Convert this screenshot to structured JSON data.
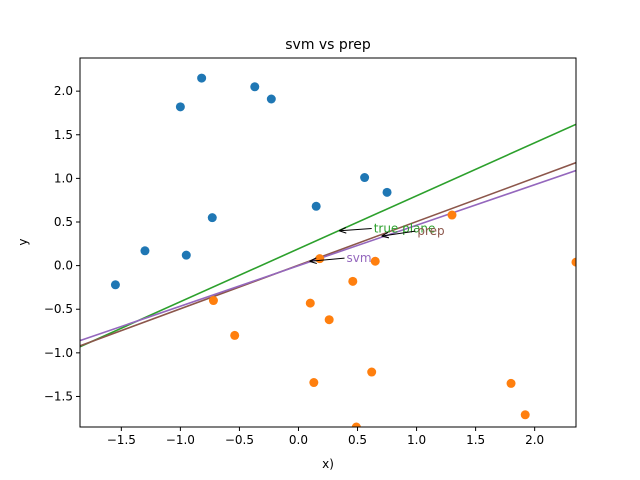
{
  "chart_data": {
    "type": "scatter",
    "title": "svm vs prep",
    "xlabel": "x)",
    "ylabel": "y",
    "xlim": [
      -1.85,
      2.35
    ],
    "ylim": [
      -1.85,
      2.38
    ],
    "grid": false,
    "xticks": [
      -1.5,
      -1.0,
      -0.5,
      0.0,
      0.5,
      1.0,
      1.5,
      2.0
    ],
    "yticks": [
      -1.5,
      -1.0,
      -0.5,
      0.0,
      0.5,
      1.0,
      1.5,
      2.0
    ],
    "series": [
      {
        "color": "#1f77b4",
        "points": [
          [
            -1.55,
            -0.22
          ],
          [
            -1.3,
            0.17
          ],
          [
            -1.0,
            1.82
          ],
          [
            -0.95,
            0.12
          ],
          [
            -0.82,
            2.15
          ],
          [
            -0.73,
            0.55
          ],
          [
            -0.37,
            2.05
          ],
          [
            -0.23,
            1.91
          ],
          [
            0.15,
            0.68
          ],
          [
            0.56,
            1.01
          ],
          [
            0.75,
            0.84
          ]
        ]
      },
      {
        "color": "#ff7f0e",
        "points": [
          [
            -0.72,
            -0.4
          ],
          [
            -0.54,
            -0.8
          ],
          [
            0.1,
            -0.43
          ],
          [
            0.13,
            -1.34
          ],
          [
            0.18,
            0.08
          ],
          [
            0.26,
            -0.62
          ],
          [
            0.46,
            -0.18
          ],
          [
            0.49,
            -1.85
          ],
          [
            0.62,
            -1.22
          ],
          [
            0.65,
            0.05
          ],
          [
            1.3,
            0.58
          ],
          [
            1.8,
            -1.35
          ],
          [
            1.92,
            -1.71
          ],
          [
            2.35,
            0.04
          ]
        ]
      }
    ],
    "lines": [
      {
        "color": "#2ca02c",
        "points": [
          [
            -1.85,
            -0.93
          ],
          [
            2.35,
            1.62
          ]
        ]
      },
      {
        "color": "#8c564b",
        "points": [
          [
            -1.85,
            -0.92
          ],
          [
            2.35,
            1.18
          ]
        ]
      },
      {
        "color": "#9467bd",
        "points": [
          [
            -1.85,
            -0.86
          ],
          [
            2.35,
            1.09
          ]
        ]
      }
    ],
    "annotations": [
      {
        "text": "true plane",
        "color": "#2ca02c",
        "text_pos": [
          0.62,
          0.38
        ],
        "arrow_to": [
          0.35,
          0.4
        ]
      },
      {
        "text": "prep",
        "color": "#8c564b",
        "text_pos": [
          0.99,
          0.35
        ],
        "arrow_to": [
          0.71,
          0.34
        ]
      },
      {
        "text": "svm",
        "color": "#9467bd",
        "text_pos": [
          0.39,
          0.04
        ],
        "arrow_to": [
          0.1,
          0.05
        ]
      }
    ]
  }
}
